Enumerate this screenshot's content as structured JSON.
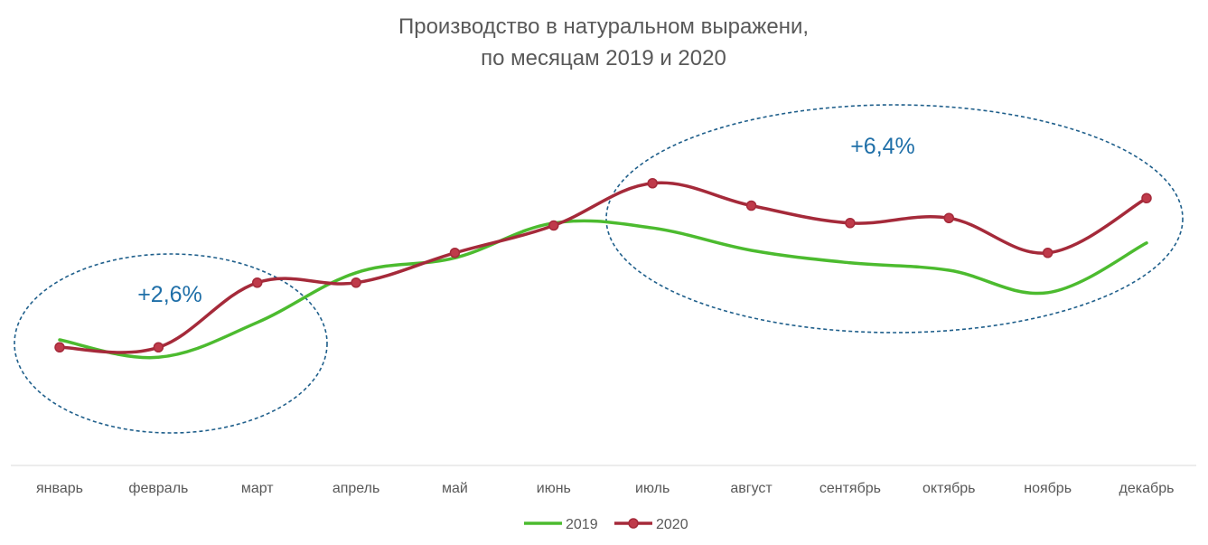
{
  "colors": {
    "series_2019": "#4cbb2f",
    "series_2020": "#a52a3a",
    "annotation": "#1f6fa8",
    "text": "#595959"
  },
  "chart_data": {
    "type": "line",
    "title": "Производство в натуральном выражени,",
    "subtitle": "по месяцам 2019 и 2020",
    "xlabel": "",
    "ylabel": "",
    "categories": [
      "январь",
      "февраль",
      "март",
      "апрель",
      "май",
      "июнь",
      "июль",
      "август",
      "сентябрь",
      "октябрь",
      "ноябрь",
      "декабрь"
    ],
    "ylim": [
      0,
      100
    ],
    "grid": false,
    "y_axis_visible": false,
    "smooth": true,
    "legend_position": "bottom",
    "series": [
      {
        "name": "2019",
        "color": "#4cbb2f",
        "markers": false,
        "values": [
          36,
          29,
          43,
          63,
          69,
          83,
          81,
          72,
          67,
          64,
          55,
          75
        ]
      },
      {
        "name": "2020",
        "color": "#a52a3a",
        "markers": true,
        "values": [
          33,
          33,
          59,
          59,
          71,
          82,
          99,
          90,
          83,
          85,
          71,
          93
        ]
      }
    ],
    "annotations": [
      {
        "text": "+2,6%",
        "from_category": "январь",
        "to_category": "март"
      },
      {
        "text": "+6,4%",
        "from_category": "июль",
        "to_category": "декабрь"
      }
    ]
  }
}
